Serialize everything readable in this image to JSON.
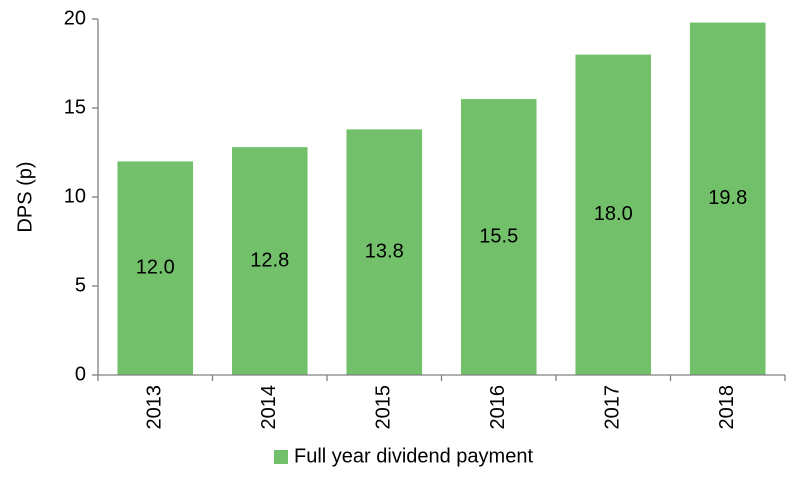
{
  "chart_data": {
    "type": "bar",
    "y_label": "DPS (p)",
    "categories": [
      "2013",
      "2014",
      "2015",
      "2016",
      "2017",
      "2018"
    ],
    "series": [
      {
        "name": "Full year dividend payment",
        "color": "#72c16a",
        "values": [
          12.0,
          12.8,
          13.8,
          15.5,
          18.0,
          19.8
        ],
        "value_labels": [
          "12.0",
          "12.8",
          "13.8",
          "15.5",
          "18.0",
          "19.8"
        ]
      }
    ],
    "ylim": [
      0,
      20
    ],
    "yticks": [
      0,
      5,
      10,
      15,
      20
    ],
    "grid": false,
    "legend": "bottom"
  }
}
